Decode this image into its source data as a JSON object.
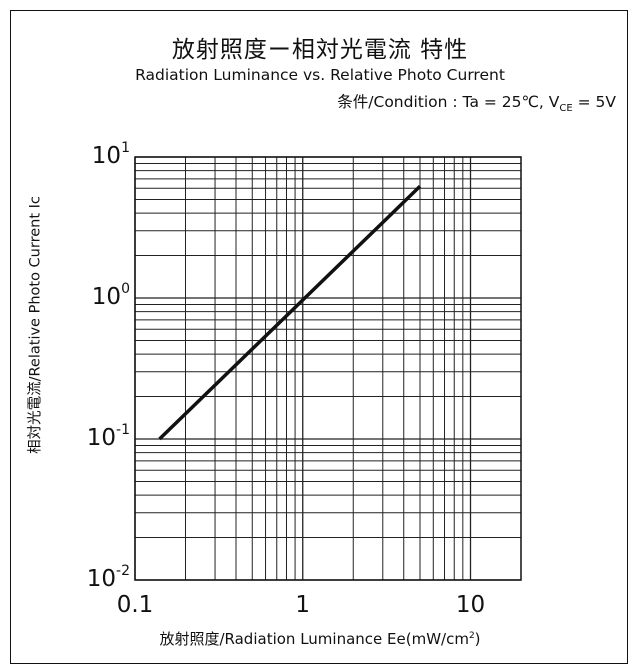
{
  "title_jp": "放射照度ー相対光電流 特性",
  "title_en": "Radiation Luminance vs. Relative Photo Current",
  "condition": {
    "prefix": "条件/Condition : Ta = 25℃, V",
    "sub": "CE",
    "suffix": " = 5V"
  },
  "xlabel": {
    "main": "放射照度/Radiation Luminance  Ee(mW/cm",
    "sup": "2",
    "close": ")"
  },
  "chart_data": {
    "type": "line",
    "x_scale": "log",
    "y_scale": "log",
    "xlim": [
      0.1,
      20
    ],
    "ylim": [
      0.01,
      10
    ],
    "x_ticks": [
      {
        "value": 0.1,
        "label": "0.1"
      },
      {
        "value": 1,
        "label": "1"
      },
      {
        "value": 10,
        "label": "10"
      }
    ],
    "y_ticks": [
      {
        "value": 10,
        "base": "10",
        "exp": "1"
      },
      {
        "value": 1,
        "base": "10",
        "exp": "0"
      },
      {
        "value": 0.1,
        "base": "10",
        "exp": "-1"
      },
      {
        "value": 0.01,
        "base": "10",
        "exp": "-2"
      }
    ],
    "ylabel": "相対光電流/Relative Photo Current Ic",
    "xlabel": "放射照度/Radiation Luminance  Ee(mW/cm²)",
    "grid": true,
    "series": [
      {
        "x": [
          0.14,
          5.0
        ],
        "y": [
          0.1,
          6.2
        ]
      }
    ],
    "line_color": "#111111"
  }
}
